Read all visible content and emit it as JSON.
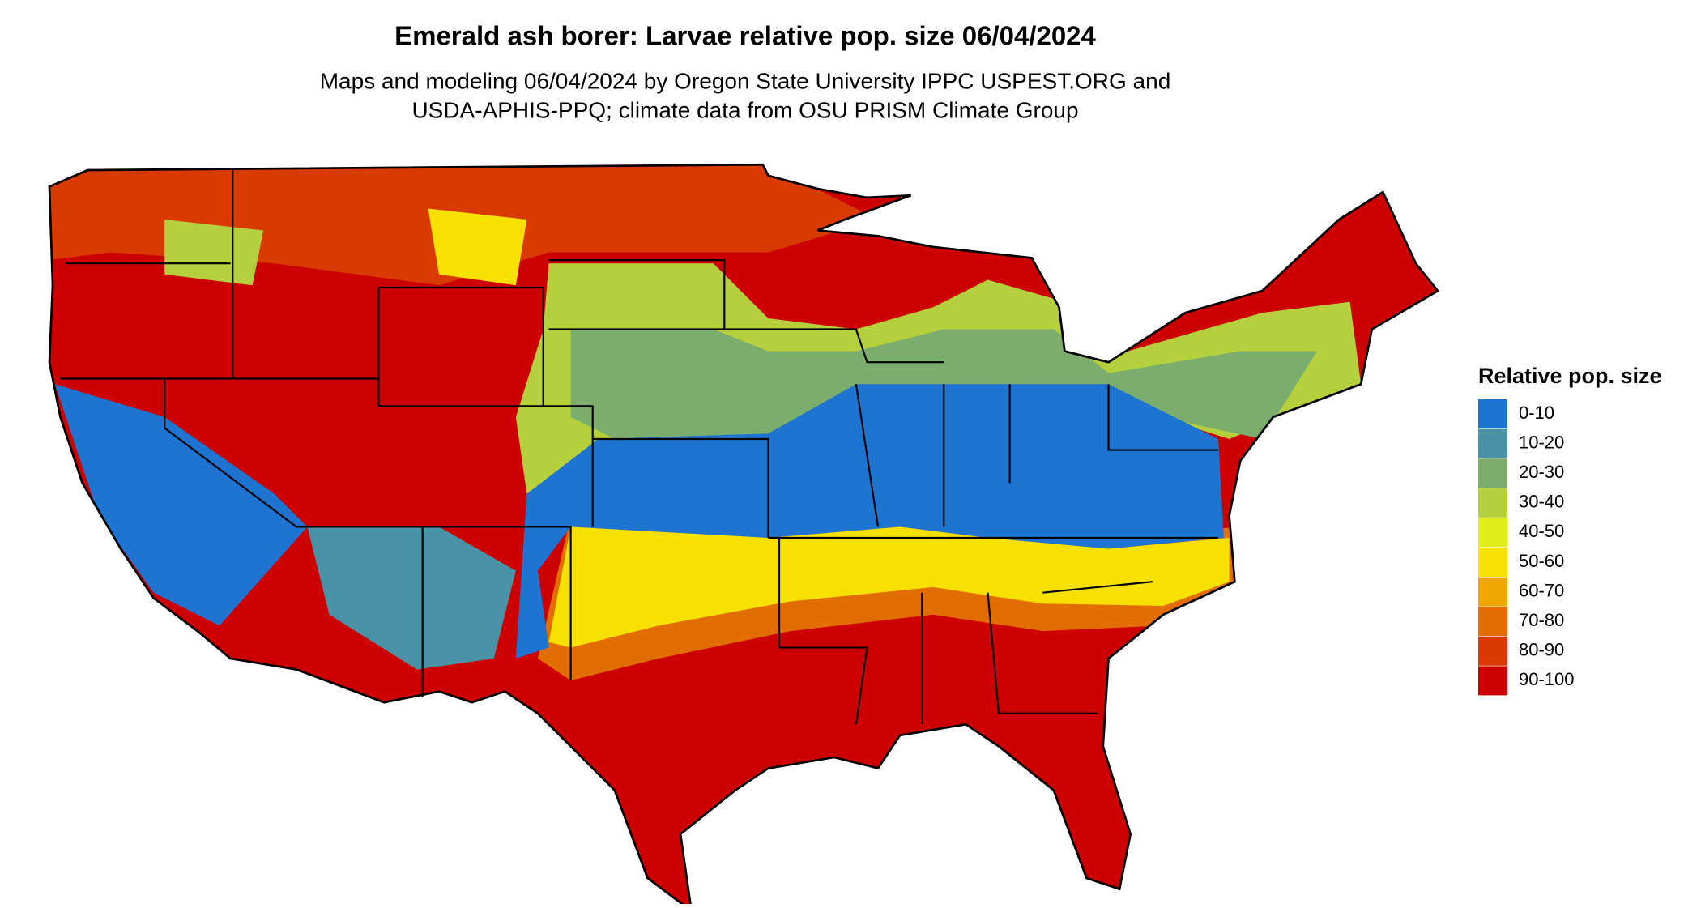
{
  "title": "Emerald ash borer: Larvae relative pop. size 06/04/2024",
  "subtitle": [
    "Maps and modeling 06/04/2024 by Oregon State University IPPC USPEST.ORG and",
    "USDA-APHIS-PPQ; climate data from OSU PRISM Climate Group"
  ],
  "legend": {
    "title": "Relative pop. size",
    "items": [
      {
        "label": "0-10",
        "color": "#1f74d1"
      },
      {
        "label": "10-20",
        "color": "#4a92a6"
      },
      {
        "label": "20-30",
        "color": "#7bad6c"
      },
      {
        "label": "30-40",
        "color": "#b5d03c"
      },
      {
        "label": "40-50",
        "color": "#e2ee1c"
      },
      {
        "label": "50-60",
        "color": "#f6e100"
      },
      {
        "label": "60-70",
        "color": "#eea600"
      },
      {
        "label": "70-80",
        "color": "#e26d00"
      },
      {
        "label": "80-90",
        "color": "#d83a00"
      },
      {
        "label": "90-100",
        "color": "#cc0000"
      }
    ]
  }
}
